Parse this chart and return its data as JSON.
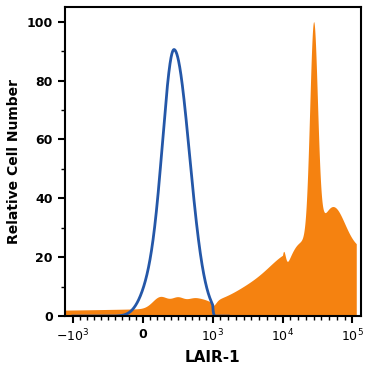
{
  "xlabel": "LAIR-1",
  "ylabel": "Relative Cell Number",
  "ylim": [
    0,
    105
  ],
  "yticks": [
    0,
    20,
    40,
    60,
    80,
    100
  ],
  "xtick_labels": [
    "$-10^3$",
    "0",
    "$10^3$",
    "$10^4$",
    "$10^5$"
  ],
  "blue_color": "#2457a8",
  "orange_color": "#f58210",
  "background_color": "#ffffff",
  "blue_linewidth": 2.0,
  "xlabel_fontsize": 11,
  "ylabel_fontsize": 10,
  "tick_fontsize": 9
}
